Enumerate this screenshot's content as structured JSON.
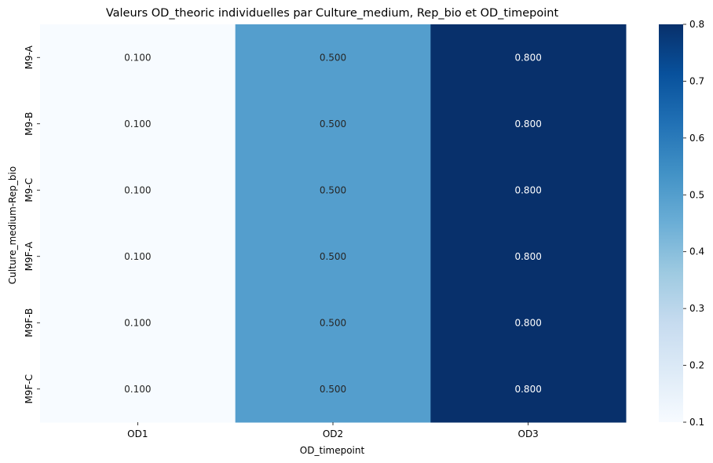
{
  "chart_data": {
    "type": "heatmap",
    "title": "Valeurs OD_theoric individuelles par Culture_medium, Rep_bio et OD_timepoint",
    "xlabel": "OD_timepoint",
    "ylabel": "Culture_medium-Rep_bio",
    "x_categories": [
      "OD1",
      "OD2",
      "OD3"
    ],
    "y_categories": [
      "M9-A",
      "M9-B",
      "M9-C",
      "M9F-A",
      "M9F-B",
      "M9F-C"
    ],
    "values": [
      [
        0.1,
        0.5,
        0.8
      ],
      [
        0.1,
        0.5,
        0.8
      ],
      [
        0.1,
        0.5,
        0.8
      ],
      [
        0.1,
        0.5,
        0.8
      ],
      [
        0.1,
        0.5,
        0.8
      ],
      [
        0.1,
        0.5,
        0.8
      ]
    ],
    "annotations": [
      [
        "0.100",
        "0.500",
        "0.800"
      ],
      [
        "0.100",
        "0.500",
        "0.800"
      ],
      [
        "0.100",
        "0.500",
        "0.800"
      ],
      [
        "0.100",
        "0.500",
        "0.800"
      ],
      [
        "0.100",
        "0.500",
        "0.800"
      ],
      [
        "0.100",
        "0.500",
        "0.800"
      ]
    ],
    "colormap": "Blues",
    "colorbar": {
      "range": [
        0.1,
        0.8
      ],
      "ticks": [
        "0.1",
        "0.2",
        "0.3",
        "0.4",
        "0.5",
        "0.6",
        "0.7",
        "0.8"
      ]
    }
  }
}
